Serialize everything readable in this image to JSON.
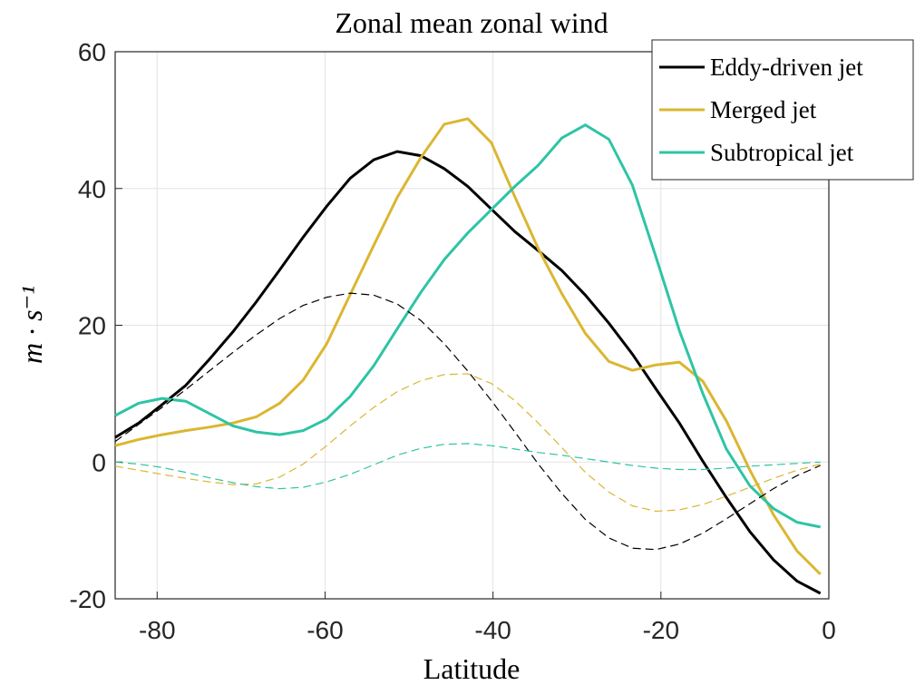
{
  "chart_data": {
    "type": "line",
    "title": "Zonal mean zonal wind",
    "xlabel": "Latitude",
    "ylabel": "m · s⁻¹",
    "x": [
      -85,
      -82.2,
      -79.4,
      -76.6,
      -73.8,
      -71,
      -68.2,
      -65.4,
      -62.6,
      -59.8,
      -57,
      -54.2,
      -51.4,
      -48.6,
      -45.8,
      -43,
      -40.2,
      -37.4,
      -34.6,
      -31.8,
      -29,
      -26.2,
      -23.4,
      -20.6,
      -17.8,
      -15,
      -12.2,
      -9.4,
      -6.6,
      -3.8,
      -1
    ],
    "series": [
      {
        "name": "Eddy-driven jet",
        "color": "#000000",
        "style": "solid",
        "values": [
          3.6,
          5.7,
          8.4,
          11.2,
          15,
          19,
          23.4,
          28.1,
          32.9,
          37.4,
          41.5,
          44.2,
          45.4,
          44.8,
          42.9,
          40.3,
          37,
          33.7,
          30.9,
          28,
          24.4,
          20.3,
          15.8,
          10.7,
          5.7,
          0.1,
          -5.2,
          -10.2,
          -14.3,
          -17.4,
          -19.2
        ]
      },
      {
        "name": "Merged jet",
        "color": "#dbb631",
        "style": "solid",
        "values": [
          2.4,
          3.3,
          4,
          4.6,
          5.1,
          5.7,
          6.6,
          8.6,
          12,
          17.3,
          24.5,
          31.7,
          38.7,
          44.5,
          49.4,
          50.2,
          46.7,
          38.8,
          31.2,
          24.6,
          18.8,
          14.7,
          13.4,
          14.2,
          14.6,
          11.8,
          6,
          -1.2,
          -7.7,
          -13,
          -16.4
        ]
      },
      {
        "name": "Subtropical jet",
        "color": "#2ec4a5",
        "style": "solid",
        "values": [
          6.8,
          8.6,
          9.3,
          8.9,
          7.1,
          5.3,
          4.4,
          4,
          4.6,
          6.3,
          9.6,
          14.1,
          19.5,
          24.8,
          29.6,
          33.5,
          36.9,
          40.3,
          43.4,
          47.4,
          49.3,
          47.2,
          40.5,
          30,
          19.2,
          10,
          1.9,
          -3.5,
          -6.8,
          -8.8,
          -9.5
        ]
      },
      {
        "color": "#000000",
        "style": "dashed",
        "values": [
          3,
          5.5,
          8,
          10.6,
          13.3,
          16,
          18.6,
          21,
          22.9,
          24.1,
          24.7,
          24.4,
          23.1,
          20.7,
          17.3,
          13.3,
          9,
          4.4,
          -0.3,
          -4.6,
          -8.4,
          -11.1,
          -12.6,
          -12.8,
          -12,
          -10.4,
          -8.3,
          -6.1,
          -3.9,
          -2,
          -0.5
        ]
      },
      {
        "color": "#dbb631",
        "style": "dashed",
        "values": [
          -0.6,
          -1.2,
          -1.8,
          -2.4,
          -2.9,
          -3.3,
          -3.2,
          -2.2,
          -0.3,
          2.4,
          5.3,
          8,
          10.3,
          11.9,
          12.8,
          12.9,
          11.5,
          9,
          5.7,
          2.1,
          -1.5,
          -4.4,
          -6.4,
          -7.2,
          -7,
          -6.2,
          -5,
          -3.7,
          -2.4,
          -1.2,
          -0.3
        ]
      },
      {
        "color": "#2ec4a5",
        "style": "dashed",
        "values": [
          0,
          -0.3,
          -0.8,
          -1.5,
          -2.3,
          -3,
          -3.6,
          -3.9,
          -3.7,
          -2.9,
          -1.8,
          -0.4,
          1,
          2,
          2.6,
          2.7,
          2.4,
          1.9,
          1.4,
          1,
          0.5,
          0,
          -0.5,
          -0.9,
          -1.1,
          -1.1,
          -0.9,
          -0.6,
          -0.4,
          -0.2,
          0
        ]
      }
    ],
    "xlim": [
      -85,
      0
    ],
    "xticks": [
      -80,
      -60,
      -40,
      -20,
      0
    ],
    "ylim": [
      -20,
      60
    ],
    "yticks": [
      -20,
      0,
      20,
      40,
      60
    ],
    "grid": true,
    "legend": "top-right"
  }
}
